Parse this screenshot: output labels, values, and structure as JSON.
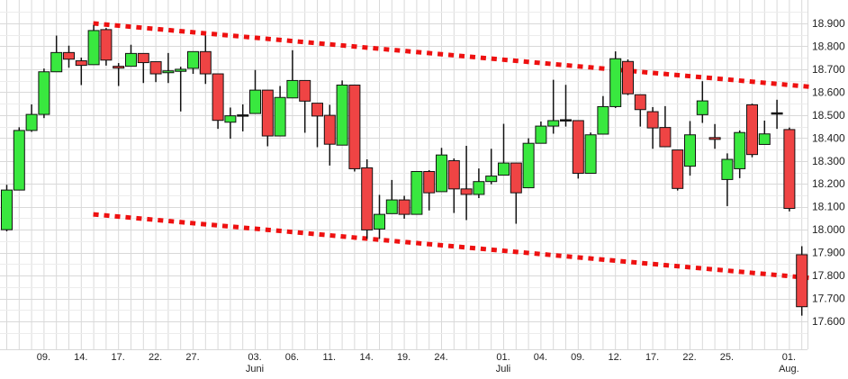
{
  "chart_data": {
    "type": "candlestick",
    "title": "",
    "xlabel": "",
    "ylabel": "",
    "ylim": [
      17560,
      18990
    ],
    "grid": true,
    "colors": {
      "up": "#39e83f",
      "down": "#ef4444",
      "outline": "#111111",
      "trendline": "#ee1111",
      "grid": "#d9d9d9"
    },
    "y_ticks": [
      {
        "value": 17600,
        "label": "17.600"
      },
      {
        "value": 17700,
        "label": "17.700"
      },
      {
        "value": 17800,
        "label": "17.800"
      },
      {
        "value": 17900,
        "label": "17.900"
      },
      {
        "value": 18000,
        "label": "18.000"
      },
      {
        "value": 18100,
        "label": "18.100"
      },
      {
        "value": 18200,
        "label": "18.200"
      },
      {
        "value": 18300,
        "label": "18.300"
      },
      {
        "value": 18400,
        "label": "18.400"
      },
      {
        "value": 18500,
        "label": "18.500"
      },
      {
        "value": 18600,
        "label": "18.600"
      },
      {
        "value": 18700,
        "label": "18.700"
      },
      {
        "value": 18800,
        "label": "18.800"
      },
      {
        "value": 18900,
        "label": "18.900"
      }
    ],
    "x_ticks": [
      {
        "index": 3,
        "label": "09.",
        "month": ""
      },
      {
        "index": 6,
        "label": "14.",
        "month": ""
      },
      {
        "index": 9,
        "label": "17.",
        "month": ""
      },
      {
        "index": 12,
        "label": "22.",
        "month": ""
      },
      {
        "index": 15,
        "label": "27.",
        "month": ""
      },
      {
        "index": 20,
        "label": "03.",
        "month": "Juni"
      },
      {
        "index": 23,
        "label": "06.",
        "month": ""
      },
      {
        "index": 26,
        "label": "11.",
        "month": ""
      },
      {
        "index": 29,
        "label": "14.",
        "month": ""
      },
      {
        "index": 32,
        "label": "19.",
        "month": ""
      },
      {
        "index": 35,
        "label": "24.",
        "month": ""
      },
      {
        "index": 40,
        "label": "01.",
        "month": "Juli"
      },
      {
        "index": 43,
        "label": "04.",
        "month": ""
      },
      {
        "index": 46,
        "label": "09.",
        "month": ""
      },
      {
        "index": 49,
        "label": "12.",
        "month": ""
      },
      {
        "index": 52,
        "label": "17.",
        "month": ""
      },
      {
        "index": 55,
        "label": "22.",
        "month": ""
      },
      {
        "index": 58,
        "label": "25.",
        "month": ""
      },
      {
        "index": 63,
        "label": "01.",
        "month": "Aug."
      }
    ],
    "candles": [
      [
        18000,
        18196,
        17993,
        18173
      ],
      [
        18173,
        18447,
        18173,
        18433
      ],
      [
        18433,
        18547,
        18427,
        18503
      ],
      [
        18503,
        18703,
        18487,
        18689
      ],
      [
        18689,
        18847,
        18689,
        18773
      ],
      [
        18773,
        18803,
        18707,
        18744
      ],
      [
        18737,
        18751,
        18631,
        18717
      ],
      [
        18720,
        18893,
        18720,
        18869
      ],
      [
        18873,
        18880,
        18716,
        18740
      ],
      [
        18713,
        18727,
        18627,
        18705
      ],
      [
        18713,
        18807,
        18713,
        18769
      ],
      [
        18769,
        18769,
        18640,
        18729
      ],
      [
        18733,
        18733,
        18644,
        18680
      ],
      [
        18685,
        18771,
        18640,
        18693
      ],
      [
        18691,
        18711,
        18516,
        18700
      ],
      [
        18704,
        18777,
        18680,
        18777
      ],
      [
        18777,
        18847,
        18636,
        18680
      ],
      [
        18680,
        18680,
        18440,
        18477
      ],
      [
        18469,
        18533,
        18397,
        18497
      ],
      [
        18497,
        18547,
        18429,
        18501
      ],
      [
        18507,
        18697,
        18507,
        18609
      ],
      [
        18609,
        18609,
        18364,
        18409
      ],
      [
        18409,
        18627,
        18409,
        18577
      ],
      [
        18575,
        18783,
        18575,
        18651
      ],
      [
        18651,
        18651,
        18423,
        18561
      ],
      [
        18552,
        18552,
        18360,
        18496
      ],
      [
        18499,
        18545,
        18280,
        18373
      ],
      [
        18369,
        18651,
        18369,
        18631
      ],
      [
        18631,
        18631,
        18254,
        18266
      ],
      [
        18270,
        18307,
        17960,
        17999
      ],
      [
        18003,
        18152,
        17960,
        18067
      ],
      [
        18070,
        18217,
        18070,
        18130
      ],
      [
        18130,
        18148,
        18048,
        18067
      ],
      [
        18067,
        18254,
        18067,
        18254
      ],
      [
        18254,
        18260,
        18084,
        18161
      ],
      [
        18166,
        18357,
        18166,
        18326
      ],
      [
        18301,
        18311,
        18073,
        18178
      ],
      [
        18178,
        18366,
        18042,
        18154
      ],
      [
        18154,
        18267,
        18138,
        18210
      ],
      [
        18210,
        18353,
        18198,
        18234
      ],
      [
        18238,
        18462,
        18238,
        18291
      ],
      [
        18291,
        18291,
        18026,
        18161
      ],
      [
        18183,
        18399,
        18183,
        18377
      ],
      [
        18377,
        18472,
        18377,
        18452
      ],
      [
        18452,
        18654,
        18419,
        18476
      ],
      [
        18478,
        18632,
        18450,
        18480
      ],
      [
        18476,
        18476,
        18223,
        18246
      ],
      [
        18246,
        18424,
        18246,
        18414
      ],
      [
        18417,
        18583,
        18417,
        18537
      ],
      [
        18537,
        18778,
        18531,
        18746
      ],
      [
        18734,
        18743,
        18587,
        18593
      ],
      [
        18589,
        18589,
        18450,
        18524
      ],
      [
        18515,
        18535,
        18353,
        18444
      ],
      [
        18446,
        18539,
        18362,
        18362
      ],
      [
        18348,
        18348,
        18171,
        18180
      ],
      [
        18277,
        18474,
        18236,
        18414
      ],
      [
        18502,
        18648,
        18466,
        18562
      ],
      [
        18402,
        18461,
        18353,
        18394
      ],
      [
        18219,
        18333,
        18103,
        18307
      ],
      [
        18266,
        18433,
        18225,
        18424
      ],
      [
        18545,
        18550,
        18316,
        18328
      ],
      [
        18372,
        18476,
        18372,
        18418
      ],
      [
        18508,
        18567,
        18440,
        18510
      ],
      [
        18437,
        18446,
        18080,
        18093
      ],
      [
        17891,
        17928,
        17625,
        17664
      ]
    ],
    "trendlines": [
      {
        "from": {
          "index": 7,
          "value": 18900
        },
        "to": {
          "index": 65,
          "value": 18622
        }
      },
      {
        "from": {
          "index": 7,
          "value": 18067
        },
        "to": {
          "index": 65,
          "value": 17788
        }
      }
    ]
  }
}
